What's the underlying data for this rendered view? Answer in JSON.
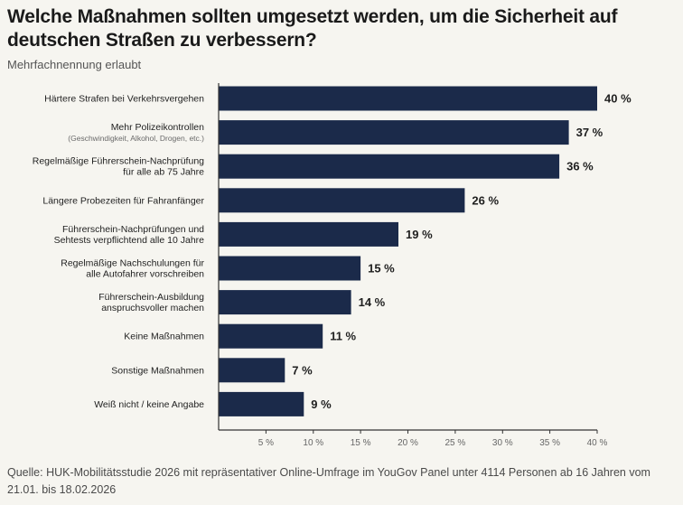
{
  "chart_data": {
    "type": "bar",
    "orientation": "horizontal",
    "title": "Welche Maßnahmen sollten umgesetzt werden, um die Sicherheit auf deutschen Straßen zu verbessern?",
    "subtitle": "Mehrfachnennung erlaubt",
    "categories": [
      [
        "Härtere Strafen bei Verkehrsvergehen"
      ],
      [
        "Mehr Polizeikontrollen",
        "(Geschwindigkeit, Alkohol, Drogen, etc.)"
      ],
      [
        "Regelmäßige Führerschein-Nachprüfung",
        "für alle ab 75 Jahre"
      ],
      [
        "Längere Probezeiten für Fahranfänger"
      ],
      [
        "Führerschein-Nachprüfungen und",
        "Sehtests verpflichtend alle 10 Jahre"
      ],
      [
        "Regelmäßige Nachschulungen für",
        "alle Autofahrer vorschreiben"
      ],
      [
        "Führerschein-Ausbildung",
        "anspruchsvoller machen"
      ],
      [
        "Keine Maßnahmen"
      ],
      [
        "Sonstige Maßnahmen"
      ],
      [
        "Weiß nicht / keine Angabe"
      ]
    ],
    "values": [
      40,
      37,
      36,
      26,
      19,
      15,
      14,
      11,
      7,
      9
    ],
    "value_suffix": " %",
    "xlim": [
      0,
      40
    ],
    "xticks": [
      5,
      10,
      15,
      20,
      25,
      30,
      35,
      40
    ],
    "tick_suffix": " %",
    "bar_color": "#1b2a4a",
    "grid": false,
    "legend": "none"
  },
  "source": "Quelle: HUK-Mobilitätsstudie 2026 mit repräsentativer Online-Umfrage im YouGov Panel unter 4114 Personen ab 16 Jahren vom 21.01. bis 18.02.2026"
}
